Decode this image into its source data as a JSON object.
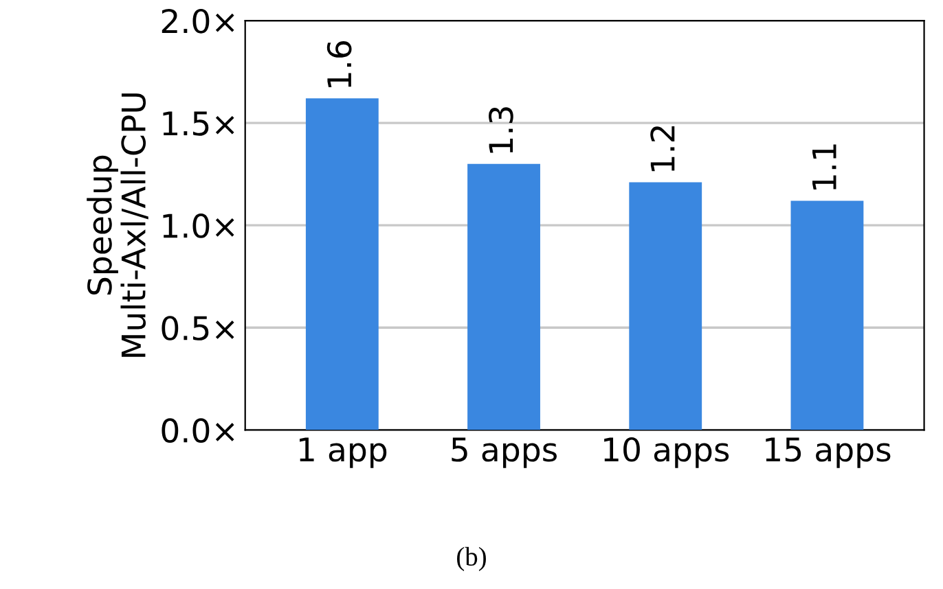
{
  "chart_data": {
    "type": "bar",
    "ylabel": "Speedup\nMulti-Axl/All-CPU",
    "categories": [
      "1 app",
      "5 apps",
      "10 apps",
      "15 apps"
    ],
    "values": [
      1.62,
      1.3,
      1.21,
      1.12
    ],
    "value_labels": [
      "1.6",
      "1.3",
      "1.2",
      "1.1"
    ],
    "color": "#3a87e0",
    "ylim": [
      0,
      2.0
    ],
    "yticks": [
      {
        "value": 0,
        "label": "0.0×"
      },
      {
        "value": 0.5,
        "label": "0.5×"
      },
      {
        "value": 1.0,
        "label": "1.0×"
      },
      {
        "value": 1.5,
        "label": "1.5×"
      },
      {
        "value": 2.0,
        "label": "2.0×"
      }
    ],
    "grid": "y",
    "annotations": [
      "(b)"
    ]
  }
}
